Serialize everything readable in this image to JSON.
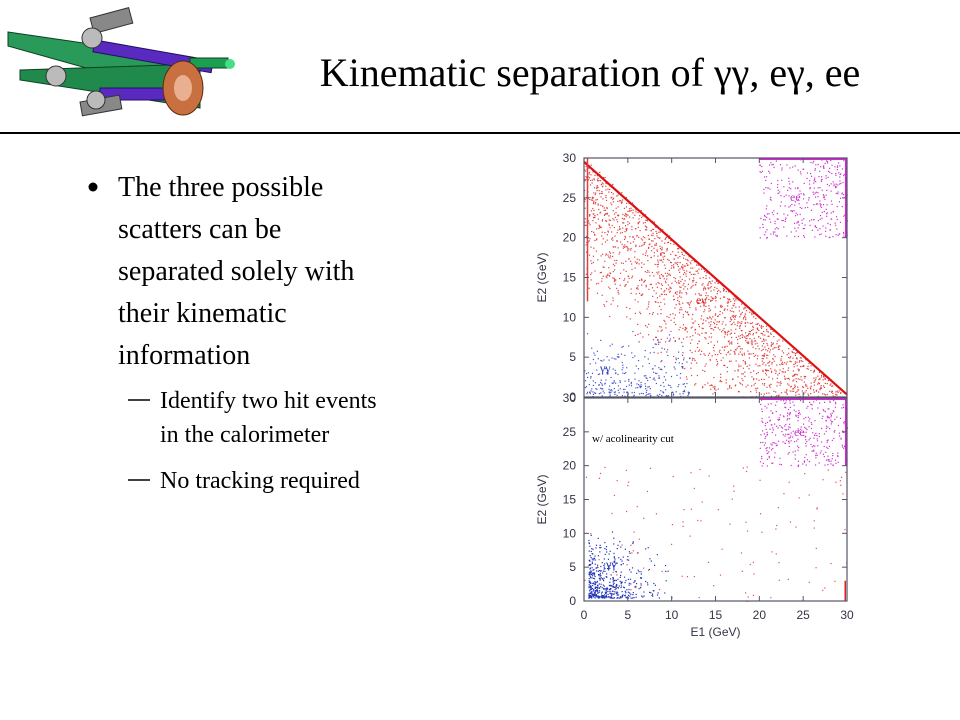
{
  "title": "Kinematic separation of γγ, eγ, ee",
  "bullets": [
    {
      "text": [
        "The three possible",
        "scatters can be",
        "separated solely with",
        "their kinematic",
        "information"
      ],
      "sub": [
        [
          "Identify two hit events",
          "in the calorimeter"
        ],
        [
          "No tracking required"
        ]
      ]
    }
  ],
  "figure": {
    "xlabel": "E1 (GeV)",
    "ylabel": "E2 (GeV)",
    "xlim": [
      0,
      30
    ],
    "ylim": [
      0,
      30
    ],
    "xticks": [
      0,
      5,
      10,
      15,
      20,
      25,
      30
    ],
    "yticks": [
      0,
      5,
      10,
      15,
      20,
      25,
      30
    ],
    "panels": [
      {
        "labels": {
          "ee": "ee",
          "eg": "eγ",
          "gg": "γγ"
        }
      },
      {
        "annotation": "w/ acolinearity cut",
        "labels": {
          "ee": "ee",
          "gg": "γγ"
        }
      }
    ]
  }
}
